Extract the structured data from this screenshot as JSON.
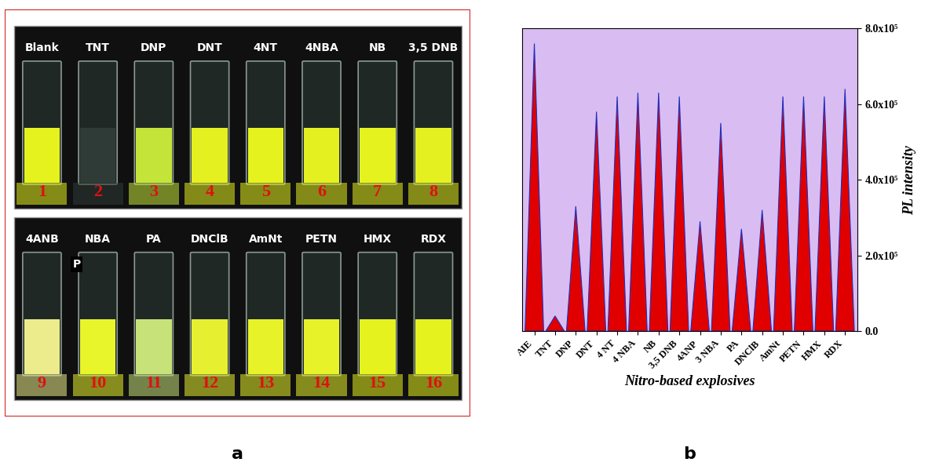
{
  "panel_labels": [
    "a",
    "b"
  ],
  "photo": {
    "rows": [
      [
        {
          "label": "Blank",
          "number": 1,
          "color": "#e6f21e"
        },
        {
          "label": "TNT",
          "number": 2,
          "color": "#2e3b36"
        },
        {
          "label": "DNP",
          "number": 3,
          "color": "#c5e43a"
        },
        {
          "label": "DNT",
          "number": 4,
          "color": "#e4f020"
        },
        {
          "label": "4NT",
          "number": 5,
          "color": "#e6f21e"
        },
        {
          "label": "4NBA",
          "number": 6,
          "color": "#e4f020"
        },
        {
          "label": "NB",
          "number": 7,
          "color": "#e6f21e"
        },
        {
          "label": "3,5 DNB",
          "number": 8,
          "color": "#e4f020"
        }
      ],
      [
        {
          "label": "4ANB",
          "number": 9,
          "color": "#ecec8c"
        },
        {
          "label": "NBA",
          "badge": "P",
          "number": 10,
          "color": "#e8f52a"
        },
        {
          "label": "PA",
          "number": 11,
          "color": "#c8e27a"
        },
        {
          "label": "DNClB",
          "number": 12,
          "color": "#e6f030"
        },
        {
          "label": "AmNt",
          "number": 13,
          "color": "#e8f228"
        },
        {
          "label": "PETN",
          "number": 14,
          "color": "#e8f228"
        },
        {
          "label": "HMX",
          "number": 15,
          "color": "#e6f21e"
        },
        {
          "label": "RDX",
          "number": 16,
          "color": "#e6f21e"
        }
      ]
    ]
  },
  "chart_data": {
    "type": "peak",
    "x_label": "Nitro-based explosives",
    "y_label": "PL intensity",
    "categories": [
      "AIE",
      "TNT",
      "DNP",
      "DNT",
      "4 NT",
      "4 NBA",
      "NB",
      "3,5 DNB",
      "4ANP",
      "3 NBA",
      "PA",
      "DNClB",
      "AmNt",
      "PETN",
      "HMX",
      "RDX"
    ],
    "values": [
      760000,
      40000,
      330000,
      580000,
      620000,
      630000,
      630000,
      620000,
      290000,
      550000,
      270000,
      320000,
      620000,
      620000,
      620000,
      640000
    ],
    "color": "#e00000",
    "ylim": [
      0,
      800000
    ],
    "yticks": [
      {
        "value": 0,
        "label": "0.0"
      },
      {
        "value": 200000,
        "label": "2.0x10⁵"
      },
      {
        "value": 400000,
        "label": "4.0x10⁵"
      },
      {
        "value": 600000,
        "label": "6.0x10⁵"
      },
      {
        "value": 800000,
        "label": "8.0x10⁵"
      }
    ],
    "grid": false
  }
}
